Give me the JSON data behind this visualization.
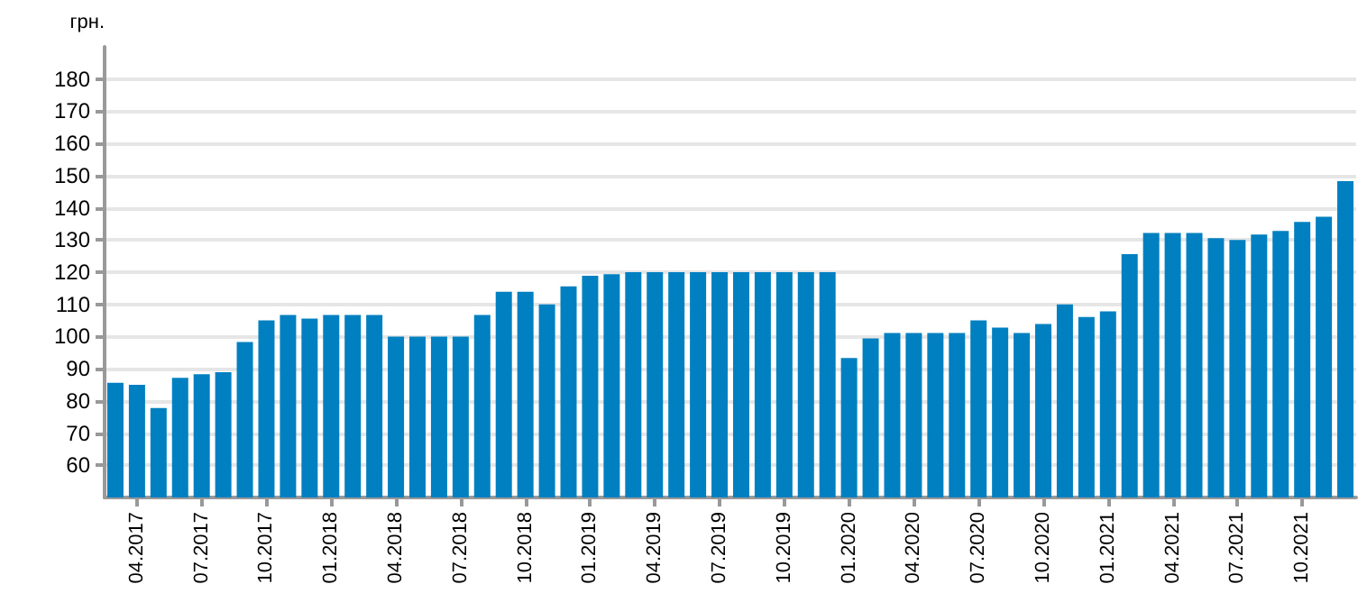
{
  "chart_data": {
    "type": "bar",
    "ylabel": "грн.",
    "categories": [
      null,
      "04.2017",
      null,
      null,
      "07.2017",
      null,
      null,
      "10.2017",
      null,
      null,
      "01.2018",
      null,
      null,
      "04.2018",
      null,
      null,
      "07.2018",
      null,
      null,
      "10.2018",
      null,
      null,
      "01.2019",
      null,
      null,
      "04.2019",
      null,
      null,
      "07.2019",
      null,
      null,
      "10.2019",
      null,
      null,
      "01.2020",
      null,
      null,
      "04.2020",
      null,
      null,
      "07.2020",
      null,
      null,
      "10.2020",
      null,
      null,
      "01.2021",
      null,
      null,
      "04.2021",
      null,
      null,
      "07.2021",
      null,
      null,
      "10.2021",
      null,
      null
    ],
    "values": [
      85.6,
      85,
      77.8,
      87.2,
      88.3,
      88.9,
      98.3,
      105,
      106.7,
      105.6,
      106.7,
      106.7,
      106.7,
      100,
      100,
      100,
      100,
      106.7,
      113.9,
      113.9,
      110,
      115.6,
      118.9,
      119.4,
      120,
      120,
      120,
      120,
      120,
      120,
      120,
      120,
      120,
      120,
      93.3,
      99.4,
      101.1,
      101.1,
      101.1,
      101.1,
      105,
      102.8,
      101.1,
      103.9,
      110,
      106.1,
      107.8,
      125.6,
      132.2,
      132.2,
      132.2,
      130.6,
      130,
      131.7,
      132.8,
      135.6,
      137.2,
      148.3
    ],
    "color": "#0080c0",
    "ylim": [
      50,
      190
    ],
    "yticks": [
      60,
      70,
      80,
      90,
      100,
      110,
      120,
      130,
      140,
      150,
      160,
      170,
      180
    ],
    "grid": "y"
  }
}
